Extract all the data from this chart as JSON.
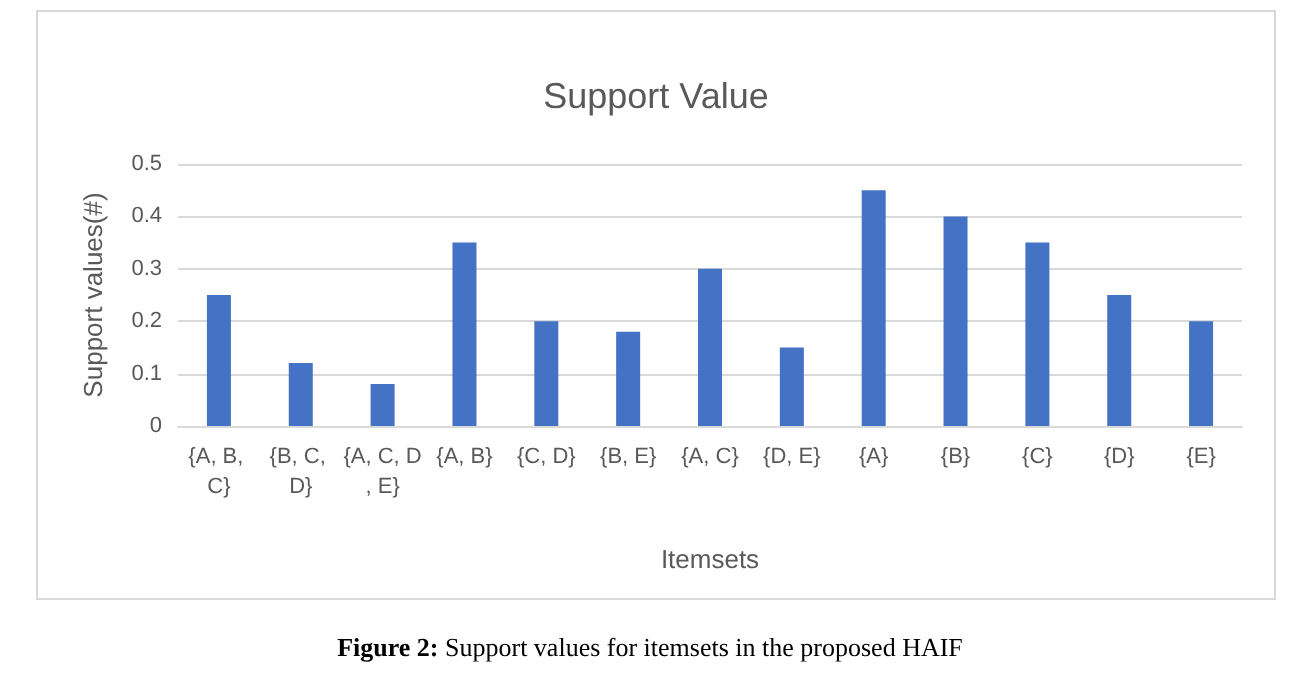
{
  "chart_data": {
    "type": "bar",
    "title": "Support Value",
    "xlabel": "Itemsets",
    "ylabel": "Support values(#)",
    "categories": [
      "{A, B, C}",
      "{B, C, D}",
      "{A, C, D, E}",
      "{A, B}",
      "{C, D}",
      "{B, E}",
      "{A, C}",
      "{D, E}",
      "{A}",
      "{B}",
      "{C}",
      "{D}",
      "{E}"
    ],
    "values": [
      0.25,
      0.12,
      0.08,
      0.35,
      0.2,
      0.18,
      0.3,
      0.15,
      0.45,
      0.4,
      0.35,
      0.25,
      0.2
    ],
    "color": "#4472c4",
    "ylim": [
      0,
      0.5
    ],
    "yticks": [
      0,
      0.1,
      0.2,
      0.3,
      0.4,
      0.5
    ],
    "grid": "y",
    "annotations": [
      "Figure 2: Support values for itemsets in the proposed HAIF"
    ]
  }
}
